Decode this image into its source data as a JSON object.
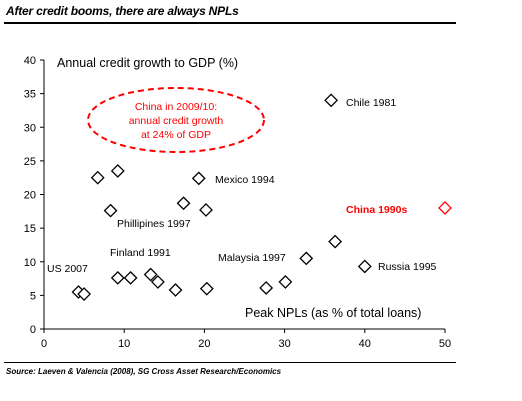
{
  "header": {
    "title": "After credit booms, there are always NPLs",
    "source": "Source: Laeven & Valencia (2008), SG Cross Asset Research/Economics"
  },
  "colors": {
    "accent": "#ff0000",
    "marker": "#000000",
    "axis": "#000000"
  },
  "chart_data": {
    "type": "scatter",
    "title": "",
    "xlabel": "Peak NPLs (as % of total loans)",
    "ylabel": "Annual credit growth to GDP (%)",
    "xlim": [
      0,
      50
    ],
    "ylim": [
      0,
      40
    ],
    "xticks": [
      0,
      10,
      20,
      30,
      40,
      50
    ],
    "yticks": [
      0,
      5,
      10,
      15,
      20,
      25,
      30,
      35,
      40
    ],
    "grid": false,
    "points": [
      {
        "x": 4.3,
        "y": 5.5,
        "label": ""
      },
      {
        "x": 5.0,
        "y": 5.2,
        "label": ""
      },
      {
        "x": 6.7,
        "y": 22.5,
        "label": ""
      },
      {
        "x": 8.3,
        "y": 17.6,
        "label": ""
      },
      {
        "x": 9.2,
        "y": 23.5,
        "label": ""
      },
      {
        "x": 9.2,
        "y": 7.6,
        "label": ""
      },
      {
        "x": 10.8,
        "y": 7.6,
        "label": ""
      },
      {
        "x": 13.3,
        "y": 8.1,
        "label": ""
      },
      {
        "x": 14.2,
        "y": 7.0,
        "label": ""
      },
      {
        "x": 16.4,
        "y": 5.8,
        "label": ""
      },
      {
        "x": 17.4,
        "y": 18.7,
        "label": ""
      },
      {
        "x": 19.3,
        "y": 22.4,
        "label": ""
      },
      {
        "x": 20.2,
        "y": 17.7,
        "label": ""
      },
      {
        "x": 20.3,
        "y": 6.0,
        "label": ""
      },
      {
        "x": 27.7,
        "y": 6.1,
        "label": ""
      },
      {
        "x": 30.1,
        "y": 7.0,
        "label": ""
      },
      {
        "x": 32.7,
        "y": 10.5,
        "label": ""
      },
      {
        "x": 35.8,
        "y": 34.0,
        "label": ""
      },
      {
        "x": 36.3,
        "y": 13.0,
        "label": ""
      },
      {
        "x": 40.0,
        "y": 9.3,
        "label": ""
      },
      {
        "x": 50.0,
        "y": 18.0,
        "label": "",
        "highlight": true
      }
    ],
    "annotations": {
      "us": "US 2007",
      "finland": "Finland 1991",
      "phillipines": "Phillipines 1997",
      "mexico": "Mexico 1994",
      "malaysia": "Malaysia 1997",
      "chile": "Chile 1981",
      "russia": "Russia 1995",
      "china": "China 1990s"
    },
    "callout": {
      "line1": "China in 2009/10:",
      "line2": "annual credit growth",
      "line3": "at 24% of GDP"
    }
  }
}
